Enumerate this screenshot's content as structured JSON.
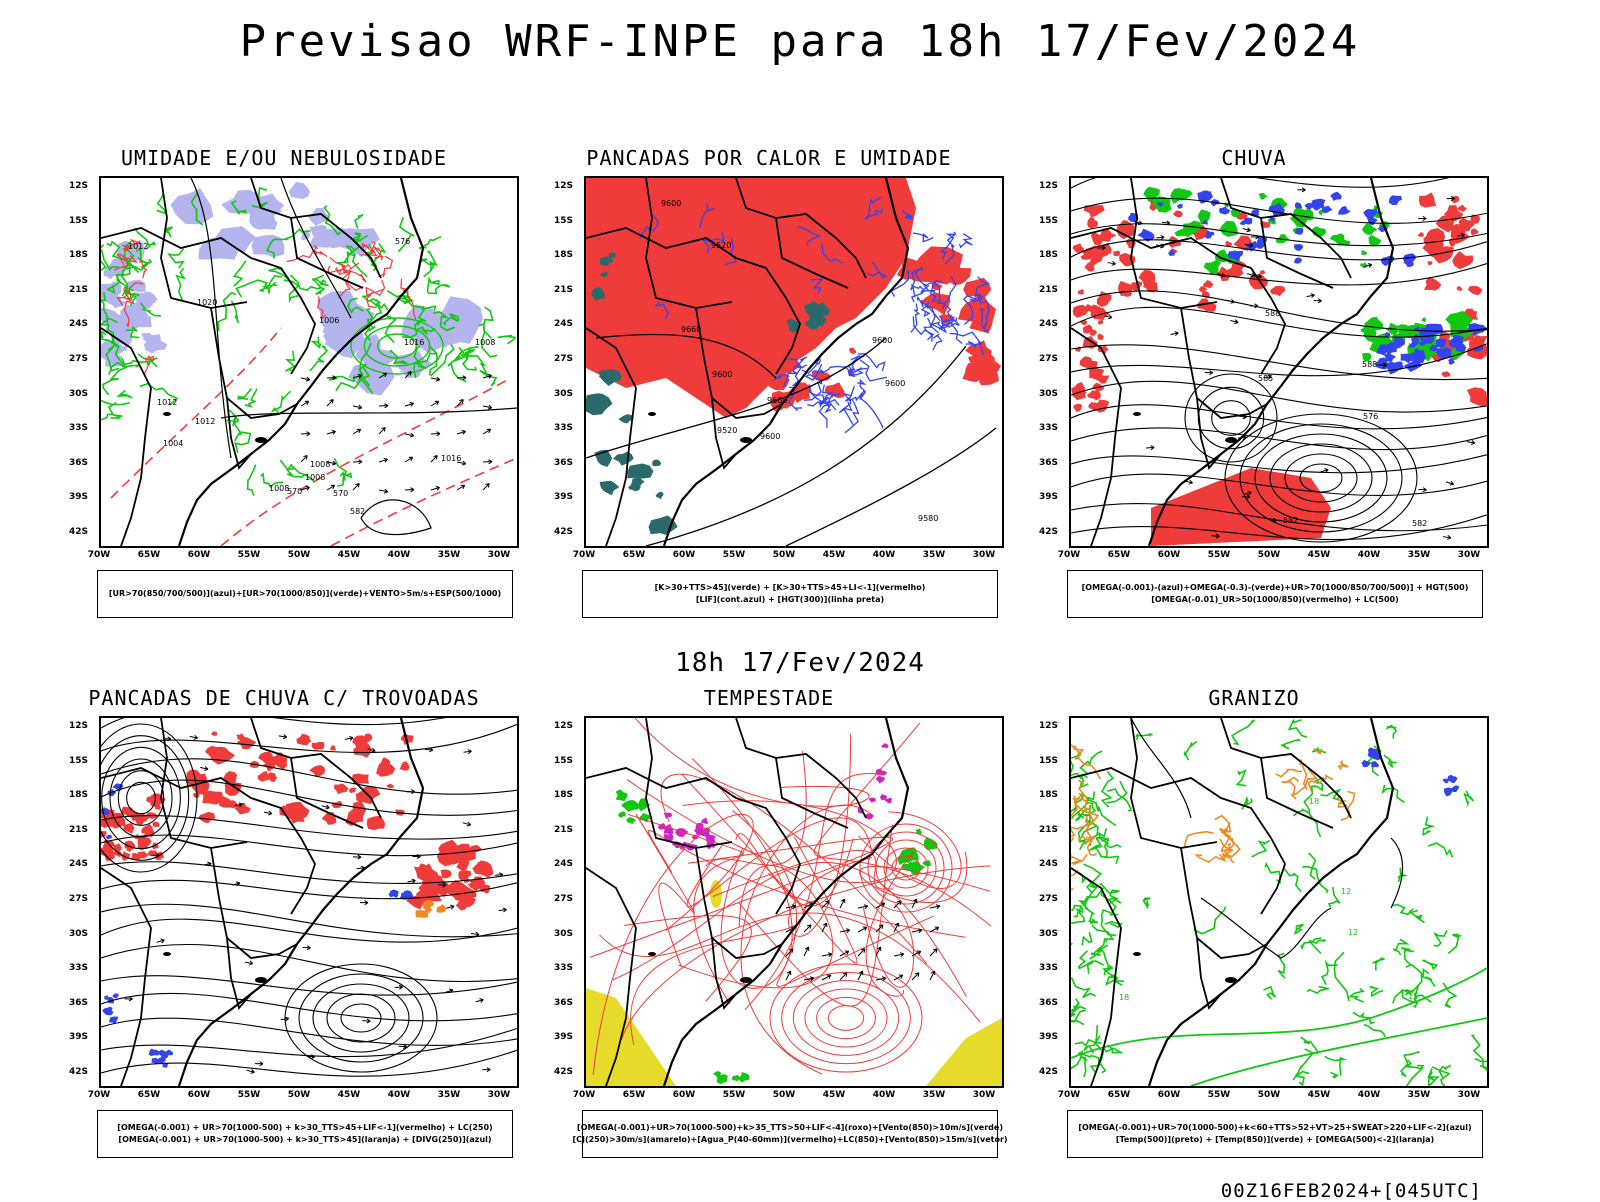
{
  "main_title": "Previsao WRF-INPE  para 18h 17/Fev/2024",
  "sub_title": "18h 17/Fev/2024",
  "footer": "00Z16FEB2024+[045UTC]",
  "lat_labels": [
    "12S",
    "15S",
    "18S",
    "21S",
    "24S",
    "27S",
    "30S",
    "33S",
    "36S",
    "39S",
    "42S"
  ],
  "lon_labels": [
    "70W",
    "65W",
    "60W",
    "55W",
    "50W",
    "45W",
    "40W",
    "35W",
    "30W"
  ],
  "colors": {
    "red": "#f03b3b",
    "green": "#11c811",
    "blue": "#3344ee",
    "lavender": "#b4b4ee",
    "teal": "#2b6a6a",
    "yellow": "#e6da2a",
    "orange": "#ef8a22",
    "magenta": "#cc22cc"
  },
  "panels": [
    {
      "title": "UMIDADE E/OU NEBULOSIDADE",
      "legend": [
        "[UR>70(850/700/500)](azul)+[UR>70(1000/850)](verde)+VENTO>5m/s+ESP(500/1000)"
      ],
      "contour_labels": [
        "1008",
        "1008",
        "1006",
        "1012",
        "1008",
        "1004",
        "1008",
        "1012",
        "1016",
        "1020",
        "1012",
        "1016",
        "570",
        "582",
        "576",
        "570"
      ]
    },
    {
      "title": "PANCADAS POR CALOR E UMIDADE",
      "legend": [
        "[K>30+TTS>45](verde) + [K>30+TTS>45+LI<-1](vermelho)",
        "[LIF](cont.azul) + [HGT(300)](linha preta)"
      ],
      "contour_labels": [
        "9660",
        "9660",
        "9600",
        "9600",
        "9580",
        "9520",
        "9600",
        "9600",
        "9520",
        "9600"
      ]
    },
    {
      "title": "CHUVA",
      "legend": [
        "[OMEGA(-0.001)-(azul)+OMEGA(-0.3)-(verde)+UR>70(1000/850/700/500)] + HGT(500)",
        "[OMEGA(-0.01)_UR>50(1000/850)(vermelho) + LC(500)"
      ],
      "contour_labels": [
        "588",
        "582",
        "576",
        "582",
        "588",
        "585"
      ]
    },
    {
      "title": "PANCADAS DE CHUVA C/ TROVOADAS",
      "legend": [
        "[OMEGA(-0.001) + UR>70(1000-500) + k>30_TTS>45+LIF<-1](vermelho) + LC(250)",
        "[OMEGA(-0.001) + UR>70(1000-500) + k>30_TTS>45](laranja) + [DIVG(250)](azul)"
      ],
      "contour_labels": []
    },
    {
      "title": "TEMPESTADE",
      "legend": [
        "[OMEGA(-0.001)+UR>70(1000-500)+k>35_TTS>50+LIF<-4](roxo)+[Vento(850)>10m/s](verde)",
        "[CJ(250)>30m/s](amarelo)+[Agua_P(40-60mm)](vermelho)+LC(850)+[Vento(850)>15m/s](vetor)"
      ],
      "contour_labels": []
    },
    {
      "title": "GRANIZO",
      "legend": [
        "[OMEGA(-0.001)+UR>70(1000-500)+k<60+TTS>52+VT>25+SWEAT>220+LIF<-2](azul)",
        "[Temp(500)](preto) + [Temp(850)](verde) + [OMEGA(500)<-2](laranja)"
      ],
      "contour_labels": [
        "18",
        "12",
        "18",
        "12",
        "15"
      ]
    }
  ]
}
